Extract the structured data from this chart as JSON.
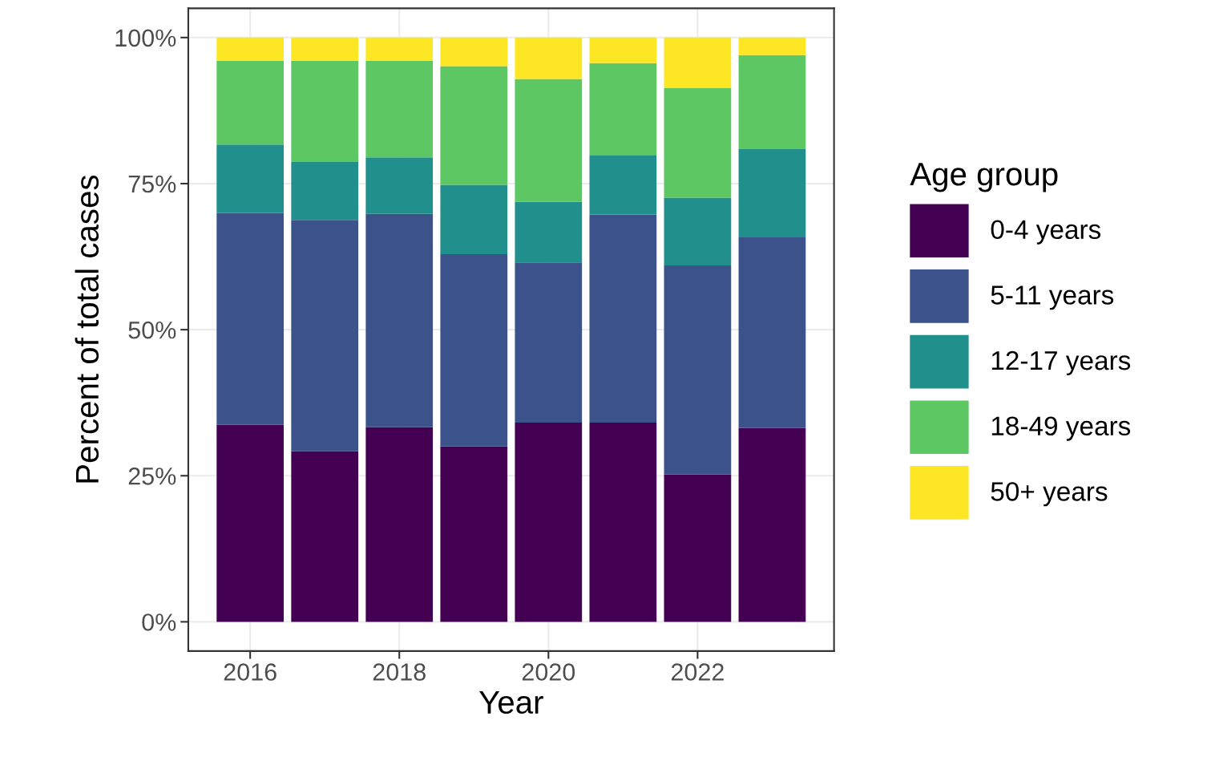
{
  "chart_data": {
    "type": "bar",
    "stacked": true,
    "xlabel": "Year",
    "ylabel": "Percent of total cases",
    "legend_title": "Age group",
    "legend": "right",
    "x": [
      2016,
      2017,
      2018,
      2019,
      2020,
      2021,
      2022,
      2023
    ],
    "series": [
      {
        "name": "0-4 years",
        "color": "#440154",
        "values": [
          33.7,
          29.2,
          33.3,
          30.0,
          34.1,
          34.1,
          25.2,
          33.2
        ]
      },
      {
        "name": "5-11 years",
        "color": "#3b528b",
        "values": [
          36.3,
          39.6,
          36.5,
          32.9,
          27.4,
          35.6,
          35.8,
          32.6
        ]
      },
      {
        "name": "12-17 years",
        "color": "#21908c",
        "values": [
          11.7,
          9.9,
          9.7,
          11.9,
          10.4,
          10.2,
          11.6,
          15.1
        ]
      },
      {
        "name": "18-49 years",
        "color": "#5dc863",
        "values": [
          14.3,
          17.3,
          16.5,
          20.3,
          21.0,
          15.7,
          18.8,
          16.1
        ]
      },
      {
        "name": "50+ years",
        "color": "#fde725",
        "values": [
          4.0,
          4.0,
          4.0,
          4.9,
          7.1,
          4.4,
          8.6,
          3.0
        ]
      }
    ],
    "xlim": [
      2015.17,
      2023.83
    ],
    "xticks": [
      2016,
      2018,
      2020,
      2022
    ],
    "ylim": [
      -5,
      105
    ],
    "yticks": [
      {
        "value": 0,
        "label": "0%"
      },
      {
        "value": 25,
        "label": "25%"
      },
      {
        "value": 50,
        "label": "50%"
      },
      {
        "value": 75,
        "label": "75%"
      },
      {
        "value": 100,
        "label": "100%"
      }
    ],
    "grid": true
  }
}
